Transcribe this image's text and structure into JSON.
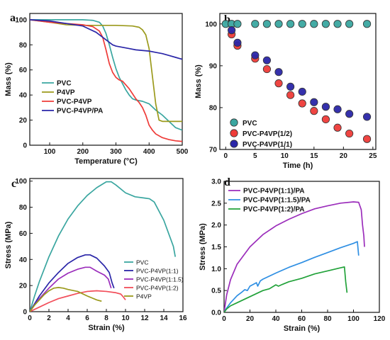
{
  "chart_data": [
    {
      "panel": "a",
      "type": "line",
      "xlabel": "Temperature (°C)",
      "ylabel": "Mass (%)",
      "xlim": [
        40,
        500
      ],
      "ylim": [
        0,
        105
      ],
      "xticks": [
        100,
        200,
        300,
        400,
        500
      ],
      "yticks": [
        0,
        20,
        40,
        60,
        80,
        100
      ],
      "legend_position": "center-left",
      "series": [
        {
          "name": "PVC",
          "color": "#3aa6a0",
          "x": [
            40,
            100,
            150,
            200,
            230,
            250,
            260,
            270,
            280,
            290,
            300,
            310,
            320,
            330,
            340,
            350,
            360,
            380,
            400,
            420,
            440,
            460,
            480,
            500
          ],
          "y": [
            100,
            100,
            100,
            100,
            99.5,
            98,
            95,
            89,
            80,
            70,
            61,
            54,
            49,
            44,
            40,
            37,
            36,
            35,
            33,
            28,
            24,
            19,
            14,
            12
          ]
        },
        {
          "name": "P4VP",
          "color": "#9b9a1c",
          "x": [
            40,
            100,
            150,
            200,
            250,
            300,
            350,
            370,
            380,
            390,
            400,
            410,
            420,
            430,
            440,
            460,
            480,
            500
          ],
          "y": [
            100,
            98,
            96,
            95.5,
            95.5,
            95.5,
            95,
            94,
            92,
            88,
            77,
            55,
            33,
            20,
            19,
            19,
            19,
            19
          ]
        },
        {
          "name": "PVC-P4VP",
          "color": "#ee3b38",
          "x": [
            40,
            100,
            150,
            200,
            230,
            250,
            260,
            270,
            280,
            290,
            300,
            310,
            320,
            330,
            340,
            350,
            360,
            370,
            380,
            390,
            400,
            410,
            420,
            440,
            460,
            480,
            500
          ],
          "y": [
            100,
            98,
            97,
            96,
            94.5,
            91,
            86,
            76,
            65,
            58,
            54,
            52,
            51,
            48,
            45,
            41,
            37,
            34,
            30,
            24,
            16,
            12,
            9,
            6,
            4.5,
            3.5,
            3
          ]
        },
        {
          "name": "PVC-P4VP/PA",
          "color": "#2a26a8",
          "x": [
            40,
            100,
            150,
            200,
            240,
            270,
            290,
            300,
            320,
            340,
            360,
            380,
            400,
            420,
            440,
            460,
            480,
            500
          ],
          "y": [
            100,
            99,
            97,
            95,
            90,
            84,
            80,
            79,
            78,
            77,
            76,
            75.5,
            75,
            74,
            73,
            71.5,
            70,
            68.5
          ]
        }
      ]
    },
    {
      "panel": "b",
      "type": "scatter",
      "xlabel": "Time (h)",
      "ylabel": "Mass (%)",
      "xlim": [
        -1,
        25.5
      ],
      "ylim": [
        70,
        102.5
      ],
      "xticks": [
        0,
        5,
        10,
        15,
        20,
        25
      ],
      "yticks": [
        70,
        80,
        90,
        100
      ],
      "legend_position": "bottom-left",
      "series": [
        {
          "name": "PVC",
          "color": "#3aa6a0",
          "x": [
            0,
            1,
            2,
            5,
            7,
            9,
            11,
            13,
            15,
            17,
            19,
            21,
            24
          ],
          "y": [
            100,
            100,
            100,
            100,
            100,
            100,
            100,
            100,
            100,
            100,
            100,
            100,
            100
          ]
        },
        {
          "name": "PVC-P4VP(1/2)",
          "color": "#ee3b38",
          "x": [
            1,
            2,
            5,
            7,
            9,
            11,
            13,
            15,
            17,
            19,
            21,
            24
          ],
          "y": [
            97.5,
            94.8,
            91.7,
            89.2,
            85.8,
            83,
            81,
            79.2,
            77.2,
            75.2,
            73.8,
            72.5
          ]
        },
        {
          "name": "PVC-P4VP(1/1)",
          "color": "#2a26a8",
          "x": [
            1,
            2,
            5,
            7,
            9,
            11,
            13,
            15,
            17,
            19,
            21,
            24
          ],
          "y": [
            98.5,
            95.5,
            92.5,
            91.3,
            88.5,
            85,
            83.8,
            81.3,
            80.2,
            79.6,
            78.5,
            77.8
          ]
        }
      ]
    },
    {
      "panel": "c",
      "type": "line",
      "xlabel": "Strain (%)",
      "ylabel": "Stress (MPa)",
      "xlim": [
        0,
        16
      ],
      "ylim": [
        0,
        102
      ],
      "xticks": [
        0,
        2,
        4,
        6,
        8,
        10,
        12,
        14,
        16
      ],
      "yticks": [
        0,
        20,
        40,
        60,
        80,
        100
      ],
      "legend_position": "right",
      "series": [
        {
          "name": "PVC",
          "color": "#3aa6a0",
          "x": [
            0,
            0.5,
            1,
            2,
            3,
            4,
            5,
            6,
            7,
            8,
            8.5,
            9,
            10,
            11,
            12,
            12.5,
            13,
            14,
            14.5,
            15,
            15.2
          ],
          "y": [
            0,
            12,
            23,
            42,
            58,
            71,
            81,
            89,
            95,
            99.5,
            99.5,
            97,
            91,
            88,
            87,
            86.5,
            84,
            70,
            60,
            50,
            42
          ]
        },
        {
          "name": "PVC-P4VP(1:1)",
          "color": "#2a26a8",
          "x": [
            0,
            0.5,
            1,
            2,
            3,
            4,
            5,
            5.8,
            6.3,
            7,
            7.8,
            8.3,
            8.6,
            8.8
          ],
          "y": [
            0,
            6,
            12,
            22,
            30,
            37,
            41.5,
            43.5,
            43.5,
            41,
            35,
            30,
            22,
            18
          ]
        },
        {
          "name": "PVC-P4VP(1:1.5)",
          "color": "#9b2dbb",
          "x": [
            0,
            0.5,
            1,
            2,
            3,
            4,
            5,
            5.8,
            6.3,
            7,
            7.8,
            8.2,
            8.5
          ],
          "y": [
            0,
            5,
            10,
            18,
            25,
            29.5,
            32.5,
            34,
            34,
            31,
            28,
            25,
            18
          ]
        },
        {
          "name": "PVC-P4VP(1:2)",
          "color": "#f24e5a",
          "x": [
            0,
            1,
            2,
            3,
            4,
            5,
            6,
            7,
            8,
            9,
            9.5,
            9.8,
            10
          ],
          "y": [
            0,
            3.5,
            7,
            10,
            12,
            14,
            15.5,
            16,
            15.5,
            14.5,
            13.5,
            11,
            9
          ]
        },
        {
          "name": "P4VP",
          "color": "#9b9a1c",
          "x": [
            0,
            0.5,
            1,
            1.5,
            2,
            2.5,
            3,
            3.5,
            4,
            5,
            6,
            7,
            7.5
          ],
          "y": [
            0,
            5,
            9,
            13,
            16,
            18,
            18.5,
            18,
            17,
            15.5,
            12,
            9,
            8
          ]
        }
      ]
    },
    {
      "panel": "d",
      "type": "line",
      "xlabel": "Strain (%)",
      "ylabel": "Stress (MPa)",
      "xlim": [
        0,
        120
      ],
      "ylim": [
        0,
        3.0
      ],
      "xticks": [
        0,
        20,
        40,
        60,
        80,
        100,
        120
      ],
      "yticks": [
        0.0,
        0.5,
        1.0,
        1.5,
        2.0,
        2.5,
        3.0
      ],
      "ytick_labels": [
        "0.0",
        "0.5",
        "1.0",
        "1.5",
        "2.0",
        "2.5",
        "3.0"
      ],
      "legend_position": "top-left",
      "series": [
        {
          "name": "PVC-P4VP(1:1)/PA",
          "color": "#9b2dbb",
          "x": [
            0,
            2,
            5,
            10,
            20,
            30,
            40,
            50,
            60,
            70,
            80,
            90,
            100,
            104,
            106,
            107,
            108,
            108.5
          ],
          "y": [
            0,
            0.4,
            0.75,
            1.1,
            1.5,
            1.78,
            1.98,
            2.13,
            2.26,
            2.37,
            2.44,
            2.5,
            2.53,
            2.52,
            2.35,
            2.0,
            1.75,
            1.5
          ]
        },
        {
          "name": "PVC-P4VP(1:1.5)/PA",
          "color": "#2f8fe3",
          "x": [
            0,
            2,
            5,
            10,
            14,
            16,
            18,
            20,
            25,
            26,
            28,
            30,
            40,
            50,
            60,
            70,
            80,
            90,
            100,
            103,
            104
          ],
          "y": [
            0,
            0.1,
            0.22,
            0.38,
            0.47,
            0.52,
            0.5,
            0.6,
            0.68,
            0.6,
            0.72,
            0.76,
            0.9,
            1.03,
            1.14,
            1.26,
            1.37,
            1.48,
            1.58,
            1.62,
            1.3
          ]
        },
        {
          "name": "PVC-P4VP(1:2)/PA",
          "color": "#22a23a",
          "x": [
            0,
            2,
            5,
            10,
            20,
            30,
            35,
            40,
            42,
            45,
            50,
            60,
            70,
            80,
            90,
            93,
            94,
            95
          ],
          "y": [
            0,
            0.08,
            0.15,
            0.22,
            0.36,
            0.5,
            0.54,
            0.63,
            0.6,
            0.64,
            0.7,
            0.78,
            0.88,
            0.95,
            1.02,
            1.04,
            0.7,
            0.45
          ]
        }
      ]
    }
  ]
}
